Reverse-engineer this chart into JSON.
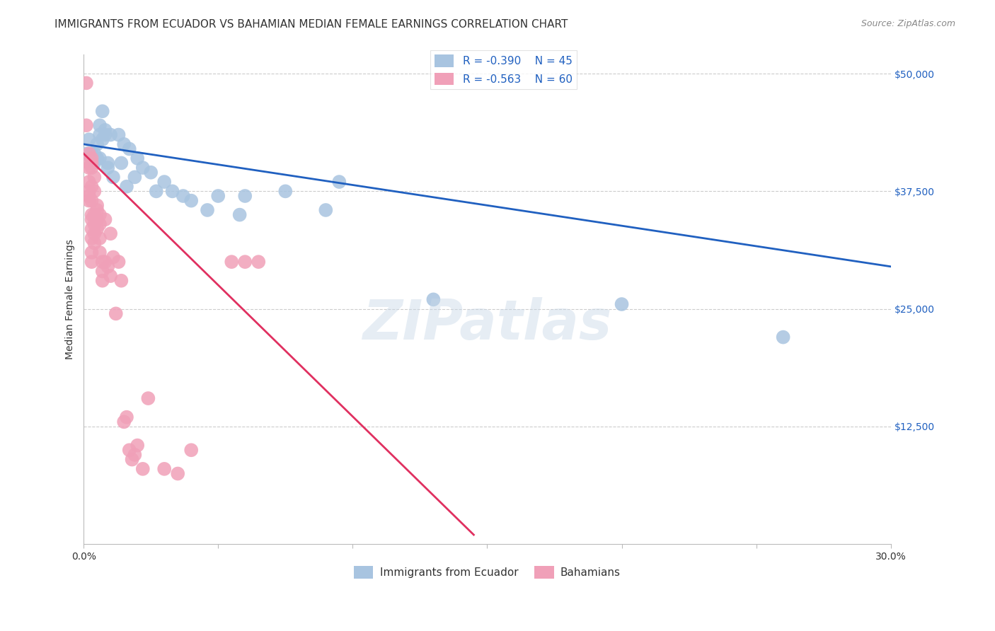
{
  "title": "IMMIGRANTS FROM ECUADOR VS BAHAMIAN MEDIAN FEMALE EARNINGS CORRELATION CHART",
  "source": "Source: ZipAtlas.com",
  "ylabel": "Median Female Earnings",
  "yticks": [
    0,
    12500,
    25000,
    37500,
    50000
  ],
  "ytick_labels": [
    "",
    "$12,500",
    "$25,000",
    "$37,500",
    "$50,000"
  ],
  "xmin": 0.0,
  "xmax": 0.3,
  "ymin": 0,
  "ymax": 52000,
  "legend_label1": "Immigrants from Ecuador",
  "legend_label2": "Bahamians",
  "R1": "-0.390",
  "N1": "45",
  "R2": "-0.563",
  "N2": "60",
  "blue_color": "#a8c4e0",
  "pink_color": "#f0a0b8",
  "blue_line_color": "#2060c0",
  "pink_line_color": "#e03060",
  "watermark": "ZIPatlas",
  "blue_scatter": [
    [
      0.001,
      41500
    ],
    [
      0.002,
      43000
    ],
    [
      0.003,
      41000
    ],
    [
      0.003,
      41500
    ],
    [
      0.004,
      41000
    ],
    [
      0.004,
      41500
    ],
    [
      0.004,
      40500
    ],
    [
      0.005,
      41000
    ],
    [
      0.005,
      42500
    ],
    [
      0.005,
      41000
    ],
    [
      0.006,
      44500
    ],
    [
      0.006,
      41000
    ],
    [
      0.006,
      43500
    ],
    [
      0.007,
      43000
    ],
    [
      0.007,
      46000
    ],
    [
      0.008,
      44000
    ],
    [
      0.008,
      43500
    ],
    [
      0.009,
      40500
    ],
    [
      0.009,
      40000
    ],
    [
      0.01,
      43500
    ],
    [
      0.011,
      39000
    ],
    [
      0.013,
      43500
    ],
    [
      0.014,
      40500
    ],
    [
      0.015,
      42500
    ],
    [
      0.016,
      38000
    ],
    [
      0.017,
      42000
    ],
    [
      0.019,
      39000
    ],
    [
      0.02,
      41000
    ],
    [
      0.022,
      40000
    ],
    [
      0.025,
      39500
    ],
    [
      0.027,
      37500
    ],
    [
      0.03,
      38500
    ],
    [
      0.033,
      37500
    ],
    [
      0.037,
      37000
    ],
    [
      0.04,
      36500
    ],
    [
      0.046,
      35500
    ],
    [
      0.05,
      37000
    ],
    [
      0.058,
      35000
    ],
    [
      0.06,
      37000
    ],
    [
      0.075,
      37500
    ],
    [
      0.09,
      35500
    ],
    [
      0.095,
      38500
    ],
    [
      0.13,
      26000
    ],
    [
      0.2,
      25500
    ],
    [
      0.26,
      22000
    ]
  ],
  "pink_scatter": [
    [
      0.001,
      49000
    ],
    [
      0.001,
      44500
    ],
    [
      0.002,
      41500
    ],
    [
      0.002,
      40500
    ],
    [
      0.002,
      40000
    ],
    [
      0.002,
      38500
    ],
    [
      0.002,
      37500
    ],
    [
      0.002,
      37000
    ],
    [
      0.002,
      36500
    ],
    [
      0.003,
      41000
    ],
    [
      0.003,
      40500
    ],
    [
      0.003,
      40000
    ],
    [
      0.003,
      38000
    ],
    [
      0.003,
      36500
    ],
    [
      0.003,
      35000
    ],
    [
      0.003,
      34500
    ],
    [
      0.003,
      33500
    ],
    [
      0.003,
      32500
    ],
    [
      0.003,
      31000
    ],
    [
      0.003,
      30000
    ],
    [
      0.004,
      39000
    ],
    [
      0.004,
      37500
    ],
    [
      0.004,
      35000
    ],
    [
      0.004,
      34000
    ],
    [
      0.004,
      33000
    ],
    [
      0.004,
      32000
    ],
    [
      0.005,
      36000
    ],
    [
      0.005,
      35500
    ],
    [
      0.005,
      34500
    ],
    [
      0.005,
      33500
    ],
    [
      0.006,
      35000
    ],
    [
      0.006,
      34000
    ],
    [
      0.006,
      32500
    ],
    [
      0.006,
      31000
    ],
    [
      0.007,
      30000
    ],
    [
      0.007,
      29000
    ],
    [
      0.007,
      28000
    ],
    [
      0.008,
      34500
    ],
    [
      0.008,
      30000
    ],
    [
      0.009,
      29500
    ],
    [
      0.01,
      33000
    ],
    [
      0.01,
      28500
    ],
    [
      0.011,
      30500
    ],
    [
      0.012,
      24500
    ],
    [
      0.013,
      30000
    ],
    [
      0.014,
      28000
    ],
    [
      0.015,
      13000
    ],
    [
      0.016,
      13500
    ],
    [
      0.017,
      10000
    ],
    [
      0.018,
      9000
    ],
    [
      0.019,
      9500
    ],
    [
      0.02,
      10500
    ],
    [
      0.022,
      8000
    ],
    [
      0.024,
      15500
    ],
    [
      0.03,
      8000
    ],
    [
      0.035,
      7500
    ],
    [
      0.04,
      10000
    ],
    [
      0.055,
      30000
    ],
    [
      0.06,
      30000
    ],
    [
      0.065,
      30000
    ]
  ],
  "blue_line_x": [
    0.0,
    0.3
  ],
  "blue_line_y": [
    42500,
    29500
  ],
  "pink_line_x": [
    0.0,
    0.145
  ],
  "pink_line_y": [
    41500,
    1000
  ],
  "title_fontsize": 11,
  "axis_label_fontsize": 10,
  "tick_fontsize": 10,
  "legend_fontsize": 11
}
